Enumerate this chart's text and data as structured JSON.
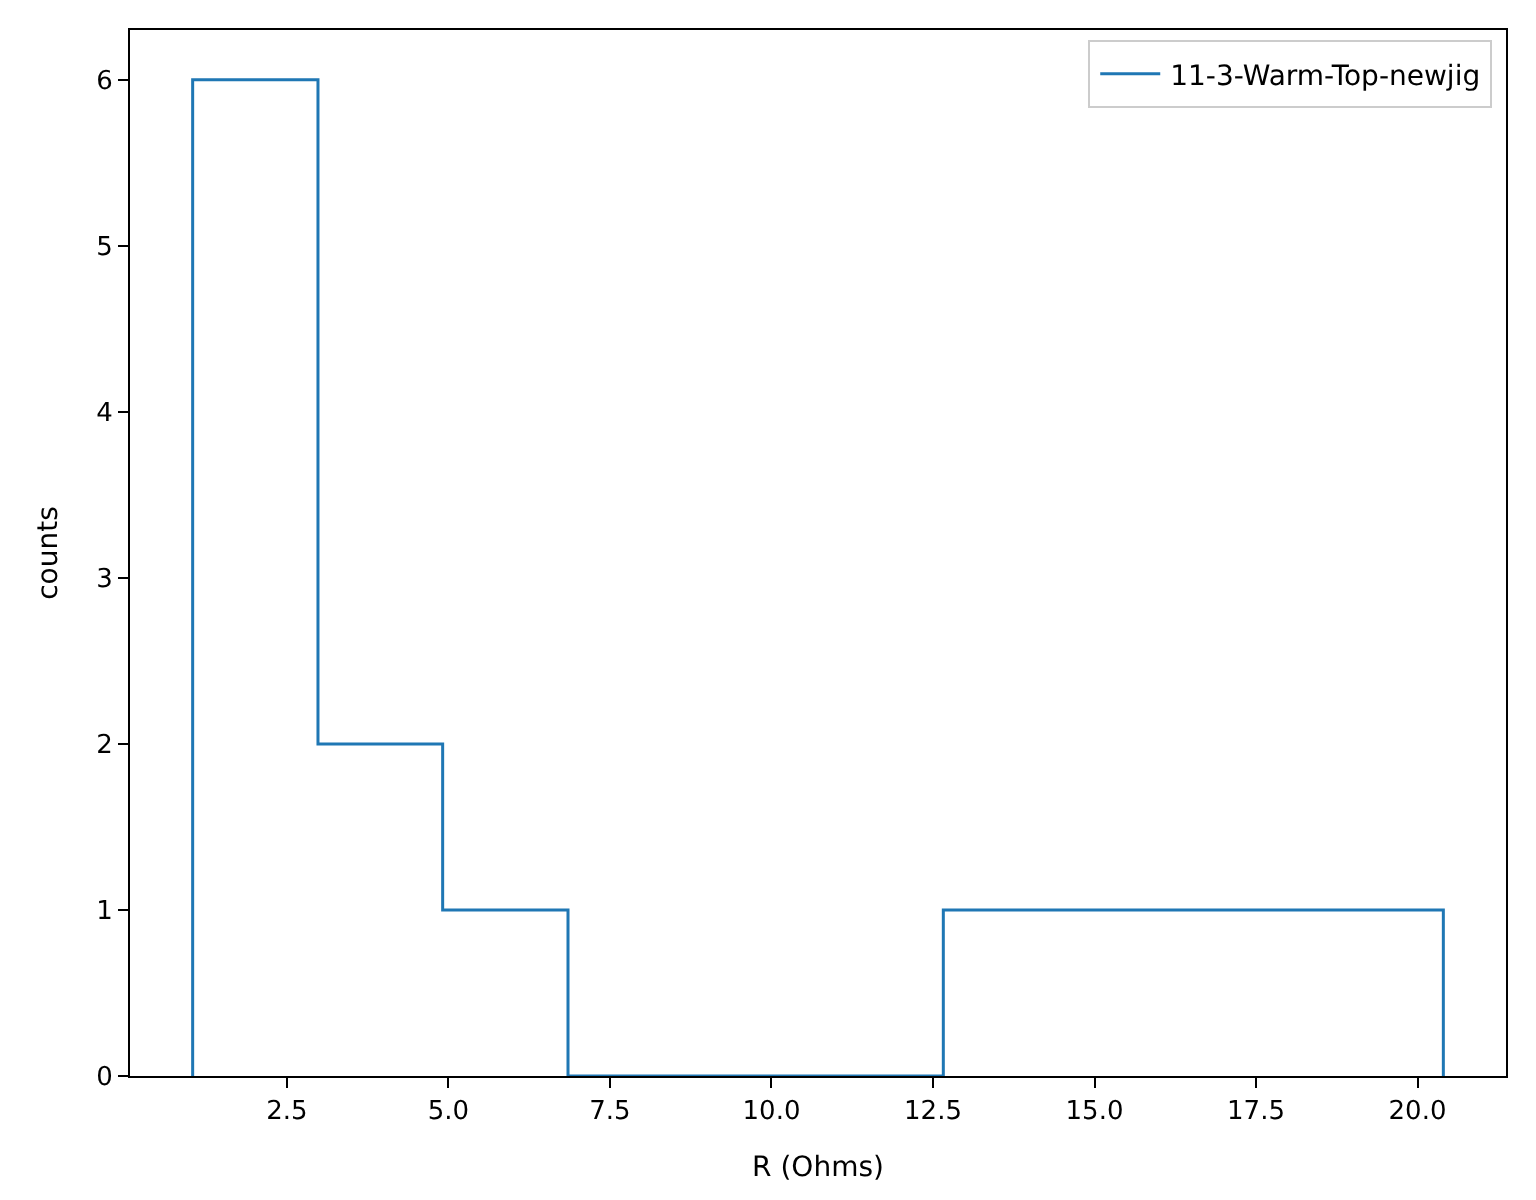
{
  "chart_data": {
    "type": "histogram",
    "xlabel": "R (Ohms)",
    "ylabel": "counts",
    "bins": [
      1.04,
      2.98,
      4.91,
      6.85,
      8.78,
      10.72,
      12.66,
      14.59,
      16.53,
      18.46,
      20.4
    ],
    "series": [
      {
        "name": "11-3-Warm-Top-newjig",
        "color": "#1f77b4",
        "values": [
          6,
          2,
          1,
          0,
          0,
          0,
          1,
          1,
          1,
          1
        ]
      }
    ],
    "xlim": [
      0.07,
      21.37
    ],
    "xticks": [
      {
        "value": 2.5,
        "label": "2.5"
      },
      {
        "value": 5,
        "label": "5.0"
      },
      {
        "value": 7.5,
        "label": "7.5"
      },
      {
        "value": 10,
        "label": "10.0"
      },
      {
        "value": 12.5,
        "label": "12.5"
      },
      {
        "value": 15,
        "label": "15.0"
      },
      {
        "value": 17.5,
        "label": "17.5"
      },
      {
        "value": 20,
        "label": "20.0"
      }
    ],
    "ylim": [
      0,
      6.3
    ],
    "yticks": [
      0,
      1,
      2,
      3,
      4,
      5,
      6
    ],
    "legend": "top right"
  }
}
